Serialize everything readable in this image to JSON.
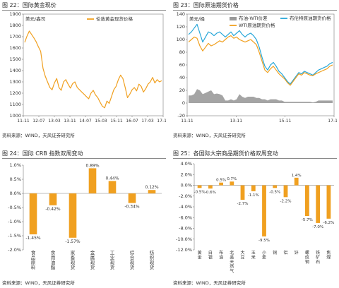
{
  "colors": {
    "orange": "#f0a020",
    "blue": "#27a6d8",
    "gray": "#9a9a9a",
    "axis": "#7a7a7a",
    "grid": "#e6e6e6"
  },
  "panels": {
    "p22": {
      "title": "图 22：国际黄金现价",
      "source": "资料来源：WIND，天风证券研究所"
    },
    "p23": {
      "title": "图 23：国际原油期货价格",
      "source": ""
    },
    "p24": {
      "title": "图 24：国际 CRB 指数双周变动",
      "source": "资料来源：WIND，天风证券研究所"
    },
    "p25": {
      "title": "图 25：各国际大宗商品期货价格双周变动",
      "source": "资料来源：WIND，天风证券研究所"
    }
  },
  "source_top_right": "资料来源：WIND，天风证券研究所",
  "chart_data": [
    {
      "id": "gold",
      "type": "line",
      "title": "",
      "unit_label": "美元/盎司",
      "series": [
        {
          "name": "伦敦黄金现货价格",
          "color": "#f0a020",
          "values": [
            1650,
            1705,
            1750,
            1720,
            1690,
            1655,
            1610,
            1570,
            1420,
            1350,
            1300,
            1250,
            1230,
            1290,
            1330,
            1250,
            1225,
            1300,
            1320,
            1280,
            1245,
            1285,
            1300,
            1250,
            1230,
            1210,
            1190,
            1170,
            1150,
            1200,
            1225,
            1185,
            1160,
            1120,
            1085,
            1070,
            1130,
            1110,
            1170,
            1230,
            1260,
            1320,
            1360,
            1330,
            1250,
            1160,
            1190,
            1230,
            1250,
            1220,
            1280,
            1260,
            1210,
            1240,
            1280,
            1300,
            1340,
            1290,
            1320,
            1300,
            1310
          ]
        }
      ],
      "x_ticks": [
        "11-11",
        "12-07",
        "13-03",
        "13-11",
        "14-07",
        "15-03",
        "15-11",
        "16-07",
        "17-03",
        "17-11"
      ],
      "y_ticks": [
        1000,
        1100,
        1200,
        1300,
        1400,
        1500,
        1600,
        1700,
        1800,
        1900
      ],
      "ylim": [
        1000,
        1900
      ],
      "grid": false,
      "legend": "top-right"
    },
    {
      "id": "oil",
      "type": "line",
      "title": "",
      "unit_label": "美元/桶",
      "series": [
        {
          "name": "布伦特原油期货价格",
          "color": "#27a6d8",
          "values": [
            108,
            112,
            118,
            124,
            110,
            96,
            104,
            112,
            110,
            106,
            110,
            112,
            108,
            104,
            108,
            112,
            106,
            110,
            114,
            108,
            104,
            108,
            110,
            106,
            100,
            88,
            72,
            58,
            52,
            60,
            64,
            58,
            50,
            46,
            40,
            34,
            30,
            36,
            42,
            48,
            46,
            50,
            48,
            46,
            44,
            48,
            52,
            54,
            56,
            58,
            62,
            64
          ]
        },
        {
          "name": "WTI原油期货价格",
          "color": "#f0a020",
          "values": [
            96,
            100,
            104,
            102,
            90,
            82,
            88,
            94,
            90,
            92,
            95,
            98,
            96,
            100,
            104,
            106,
            102,
            104,
            100,
            98,
            96,
            98,
            100,
            96,
            92,
            80,
            66,
            52,
            48,
            54,
            58,
            52,
            46,
            42,
            38,
            32,
            28,
            34,
            40,
            46,
            44,
            48,
            46,
            44,
            43,
            46,
            48,
            50,
            52,
            54,
            58,
            60
          ]
        },
        {
          "name": "布油-WTI价差",
          "color": "#9a9a9a",
          "area": true,
          "values": [
            12,
            12,
            14,
            22,
            20,
            14,
            16,
            18,
            20,
            14,
            15,
            14,
            12,
            4,
            4,
            6,
            4,
            6,
            14,
            10,
            8,
            10,
            10,
            10,
            8,
            8,
            6,
            6,
            4,
            6,
            6,
            6,
            4,
            4,
            2,
            2,
            2,
            2,
            2,
            2,
            2,
            2,
            2,
            2,
            1,
            2,
            4,
            4,
            4,
            4,
            4,
            4
          ]
        }
      ],
      "x_ticks": [
        "11-11",
        "13-11",
        "15-11",
        "17-11"
      ],
      "y_ticks": [
        -20,
        0,
        20,
        40,
        60,
        80,
        100,
        120,
        140
      ],
      "ylim": [
        -20,
        140
      ],
      "grid": false,
      "legend": "top"
    },
    {
      "id": "crb",
      "type": "bar",
      "title": "",
      "categories": [
        "食品原料",
        "食用油脂",
        "家畜现货",
        "金属现货",
        "工业现货",
        "综合现货",
        "纺织现货"
      ],
      "values": [
        -1.45,
        -0.42,
        -1.57,
        0.89,
        0.44,
        -0.34,
        0.12
      ],
      "labels": [
        "-1.45%",
        "-0.42%",
        "-1.57%",
        "0.89%",
        "0.44%",
        "-0.34%",
        "0.12%"
      ],
      "y_ticks": [
        "1.0%",
        "0.5%",
        "0.0%",
        "-0.5%",
        "-1.0%",
        "-1.5%",
        "-2.0%"
      ],
      "ylim": [
        -2.0,
        1.0
      ],
      "color": "#f0a020",
      "grid": false
    },
    {
      "id": "commodity",
      "type": "bar",
      "title": "",
      "categories": [
        "黄金",
        "白银",
        "布油",
        "北美天然气",
        "大豆",
        "玉米",
        "小麦",
        "铜",
        "铝",
        "锌",
        "螺纹钢",
        "铁矿石",
        "焦煤"
      ],
      "values": [
        -0.5,
        -0.6,
        0.5,
        0.7,
        -2.7,
        -1.1,
        -9.5,
        -0.5,
        -2.2,
        1.4,
        -5.7,
        -7.0,
        -6.2
      ],
      "labels": [
        "-0.5%",
        "-0.6%",
        "0.5%",
        "0.7%",
        "-2.7%",
        "-1.1%",
        "-9.5%",
        "-0.5%",
        "-2.2%",
        "1.4%",
        "-5.7%",
        "-7.0%",
        "-6.2%"
      ],
      "y_ticks": [
        "4.0%",
        "2.0%",
        "0.0%",
        "-2.0%",
        "-4.0%",
        "-6.0%",
        "-8.0%",
        "-10.0%",
        "-12.0%"
      ],
      "ylim": [
        -12,
        4
      ],
      "color": "#f0a020",
      "grid": false
    }
  ]
}
